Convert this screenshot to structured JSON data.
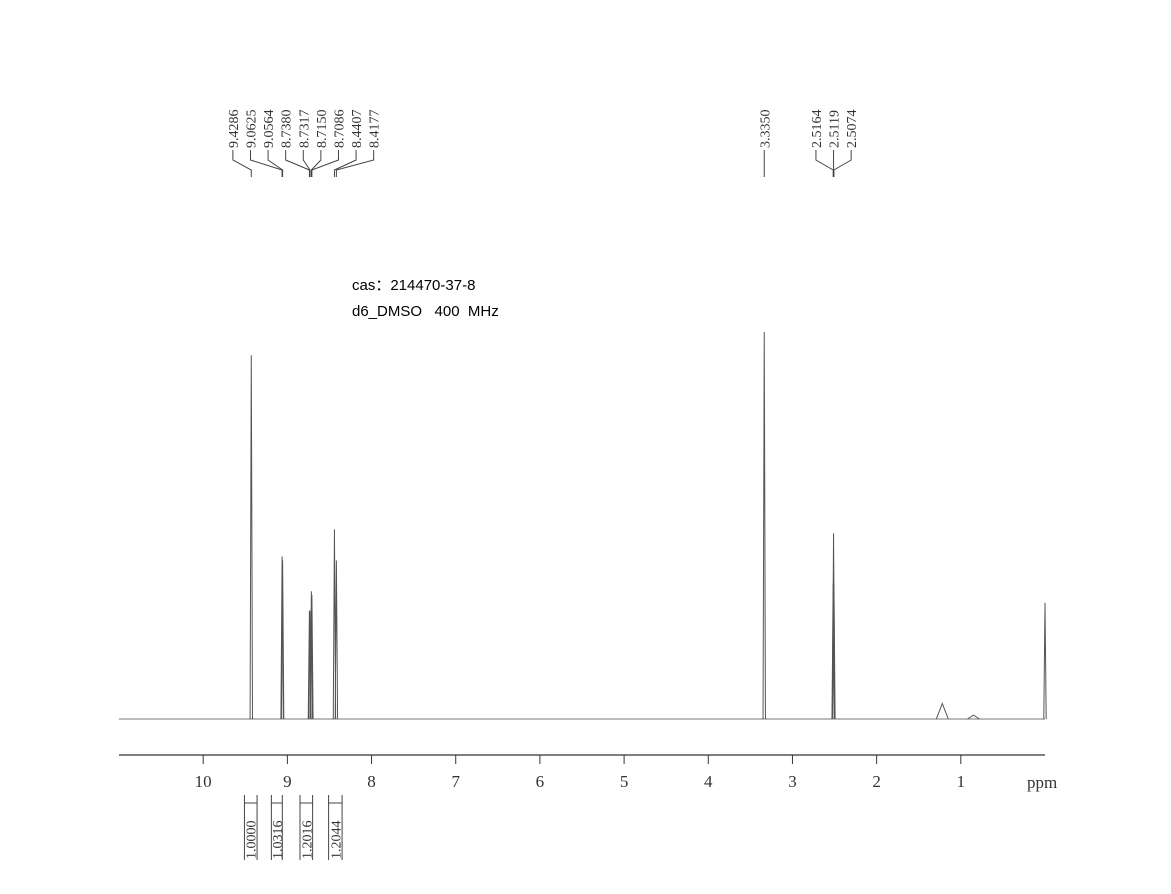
{
  "chart_data": {
    "type": "spectrum",
    "annotations": [
      "cas：214470-37-8",
      "d6_DMSO   400  MHz"
    ],
    "x_label": "ppm",
    "xlim": [
      11,
      0
    ],
    "xticks": [
      10,
      9,
      8,
      7,
      6,
      5,
      4,
      3,
      2,
      1
    ],
    "ylim": [
      0,
      100
    ],
    "color": "#555555",
    "peaks": {
      "ppm": [
        9.4286,
        9.0625,
        9.0564,
        8.738,
        8.7317,
        8.715,
        8.7086,
        8.4407,
        8.4177,
        3.335,
        2.5164,
        2.5119,
        2.5074,
        1.22,
        0.85,
        0.0
      ],
      "labels": [
        "9.4286",
        "9.0625",
        "9.0564",
        "8.7380",
        "8.7317",
        "8.7150",
        "8.7086",
        "8.4407",
        "8.4177",
        "3.3350",
        "2.5164",
        "2.5119",
        "2.5074",
        null,
        null,
        null
      ],
      "heights": [
        94,
        42,
        41,
        28,
        28,
        33,
        32,
        49,
        41,
        100,
        35,
        48,
        35,
        4,
        1,
        30
      ]
    },
    "integrals": {
      "from": [
        9.51,
        9.19,
        8.85,
        8.51
      ],
      "to": [
        9.36,
        9.06,
        8.7,
        8.35
      ],
      "values": [
        1,
        1.0316,
        1.2016,
        1.2044
      ],
      "value_labels": [
        "1.0000",
        "1.0316",
        "1.2016",
        "1.2044"
      ]
    }
  }
}
